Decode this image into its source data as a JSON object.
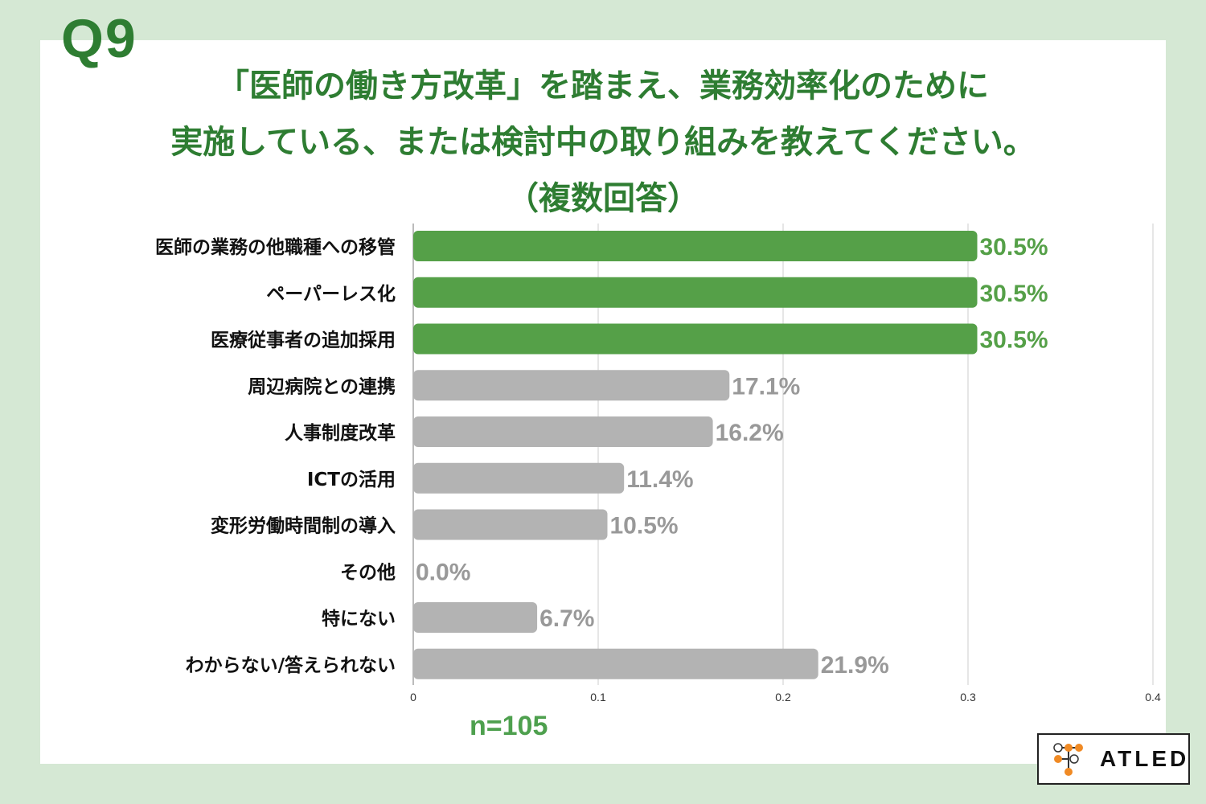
{
  "question_label": "Q9",
  "title_lines": [
    "「医師の働き方改革」を踏まえ、業務効率化のために",
    "実施している、または検討中の取り組みを教えてください。",
    "（複数回答）"
  ],
  "sample_size": "n=105",
  "logo_text": "ATLED",
  "colors": {
    "highlight": "#55a048",
    "highlight_label": "#55a048",
    "other": "#b3b3b3",
    "other_label": "#999999",
    "grid": "#cccccc",
    "title": "#2e7d32"
  },
  "chart_data": {
    "type": "bar",
    "orientation": "horizontal",
    "categories": [
      "医師の業務の他職種への移管",
      "ペーパーレス化",
      "医療従事者の追加採用",
      "周辺病院との連携",
      "人事制度改革",
      "ICTの活用",
      "変形労働時間制の導入",
      "その他",
      "特にない",
      "わからない/答えられない"
    ],
    "values": [
      0.305,
      0.305,
      0.305,
      0.171,
      0.162,
      0.114,
      0.105,
      0.0,
      0.067,
      0.219
    ],
    "value_labels": [
      "30.5%",
      "30.5%",
      "30.5%",
      "17.1%",
      "16.2%",
      "11.4%",
      "10.5%",
      "0.0%",
      "6.7%",
      "21.9%"
    ],
    "highlighted": [
      true,
      true,
      true,
      false,
      false,
      false,
      false,
      false,
      false,
      false
    ],
    "xlim": [
      0,
      0.4
    ],
    "xticks": [
      0,
      0.1,
      0.2,
      0.3,
      0.4
    ],
    "xtick_labels": [
      "0",
      "0.1",
      "0.2",
      "0.3",
      "0.4"
    ],
    "grid": true
  }
}
